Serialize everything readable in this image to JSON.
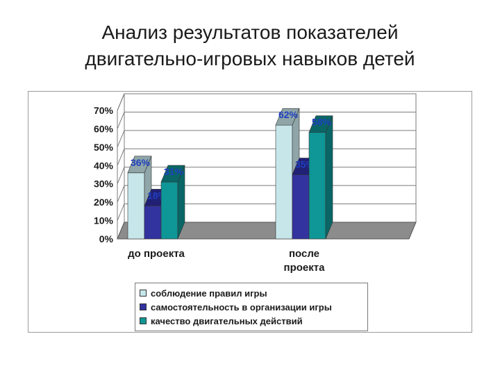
{
  "title_line1": "Анализ результатов показателей",
  "title_line2": "двигательно-игровых навыков детей",
  "chart_data": {
    "type": "bar",
    "categories": [
      "до проекта",
      "после проекта"
    ],
    "category_lines": [
      [
        "до проекта"
      ],
      [
        "после",
        "проекта"
      ]
    ],
    "series": [
      {
        "name": "соблюдение правил игры",
        "values": [
          36,
          62
        ],
        "labels": [
          "36%",
          "62%"
        ],
        "color": "#c6e6ea",
        "top_color": "#8fa5a8"
      },
      {
        "name": "самостоятельность в организации игры",
        "values": [
          18,
          35
        ],
        "labels": [
          "18%",
          "35%"
        ],
        "color": "#3333a0",
        "top_color": "#202075"
      },
      {
        "name": "качество двигательных действий",
        "values": [
          31,
          58
        ],
        "labels": [
          "31%",
          "58%"
        ],
        "color": "#0f9696",
        "top_color": "#0a6666"
      }
    ],
    "y_ticks": [
      "0%",
      "10%",
      "20%",
      "30%",
      "40%",
      "50%",
      "60%",
      "70%"
    ],
    "ylim": [
      0,
      70
    ],
    "grid": true,
    "legend_position": "bottom",
    "label_color": "#1f3fbf",
    "floor_color": "#8c8c8c"
  }
}
